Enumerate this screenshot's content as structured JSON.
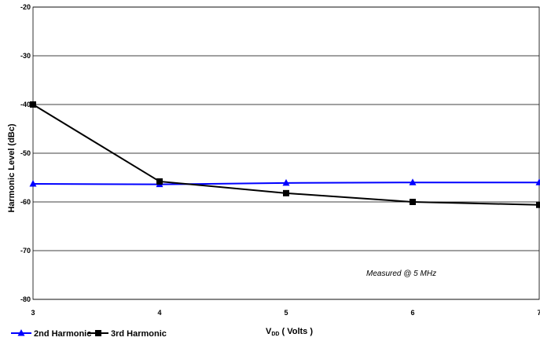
{
  "chart_data": {
    "type": "line",
    "x": [
      3,
      4,
      5,
      6,
      7
    ],
    "xlabel_main": "V",
    "xlabel_sub": "DD",
    "xlabel_rest": " ( Volts )",
    "ylabel": "Harmonic Level (dBc)",
    "xlim": [
      3,
      7
    ],
    "ylim": [
      -80,
      -20
    ],
    "xticks": [
      "3",
      "4",
      "5",
      "6",
      "7"
    ],
    "yticks": [
      "-20",
      "-30",
      "-40",
      "-50",
      "-60",
      "-70",
      "-80"
    ],
    "grid": "horizontal",
    "legend_position": "bottom-left",
    "annotation": "Measured @ 5 MHz",
    "series": [
      {
        "name": "2nd Harmonic",
        "color": "#0000ff",
        "marker": "triangle",
        "values": [
          -56.3,
          -56.4,
          -56.1,
          -56.0,
          -56.0
        ]
      },
      {
        "name": "3rd Harmonic",
        "color": "#000000",
        "marker": "square",
        "values": [
          -40.0,
          -55.8,
          -58.2,
          -60.0,
          -60.6
        ]
      }
    ]
  }
}
